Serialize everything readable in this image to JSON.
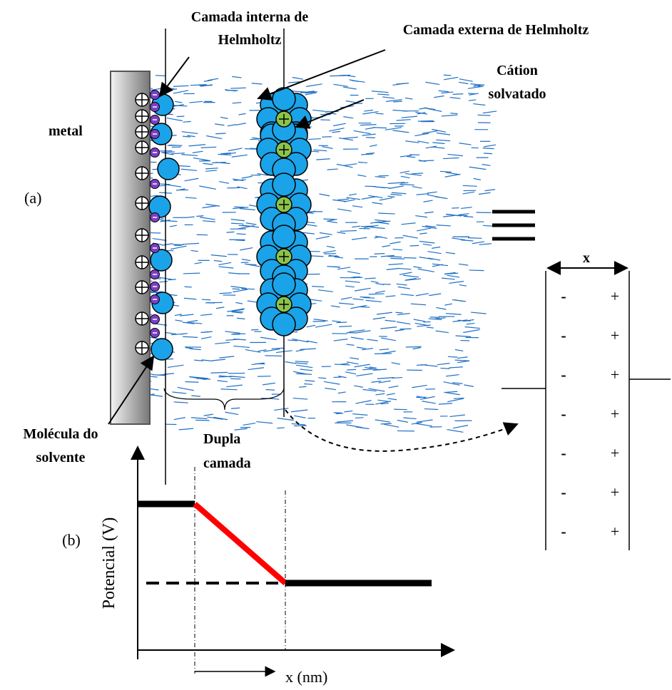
{
  "labels": {
    "inner": [
      "Camada interna de",
      "Helmholtz"
    ],
    "outer": "Camada externa de Helmholtz",
    "cation": [
      "Cátion",
      "solvatado"
    ],
    "metal": "metal",
    "panel_a": "(a)",
    "panel_b": "(b)",
    "solvent": [
      "Molécula do",
      "solvente"
    ],
    "double_layer": [
      "Dupla",
      "camada"
    ]
  },
  "graph": {
    "y_label": "Potencial (V)",
    "x_label": "x (nm)"
  },
  "capacitor": {
    "width_label": "x",
    "minus": [
      "-",
      "-",
      "-",
      "-",
      "-",
      "-",
      "-"
    ],
    "plus": [
      "+",
      "+",
      "+",
      "+",
      "+",
      "+",
      "+"
    ]
  }
}
